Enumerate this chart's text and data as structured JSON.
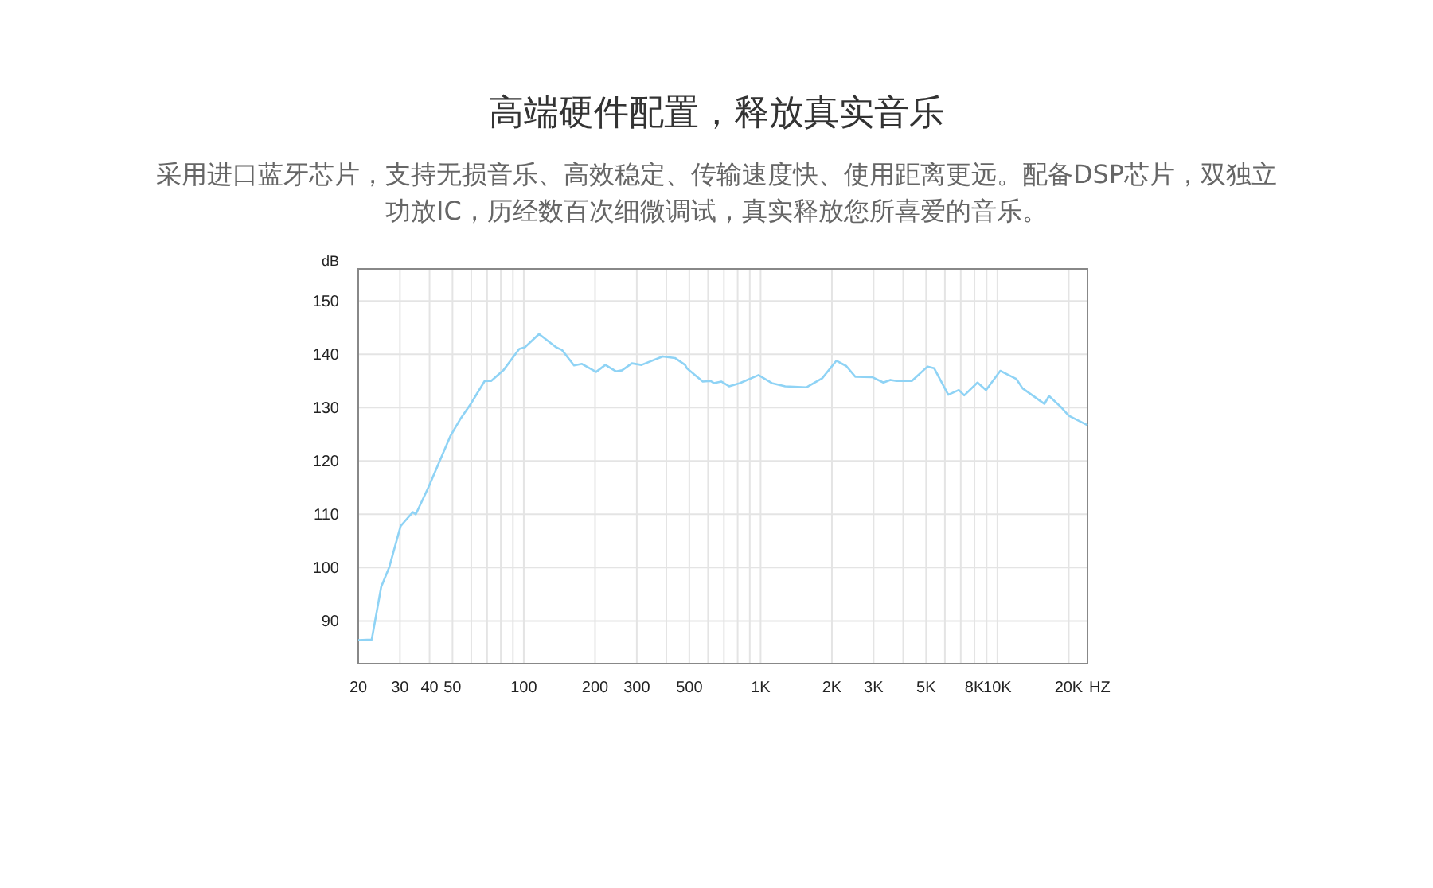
{
  "chart_data": {
    "type": "line",
    "title": "高端硬件配置，释放真实音乐",
    "subtitle": "采用进口蓝牙芯片，支持无损音乐、高效稳定、传输速度快、使用距离更远。配备DSP芯片，双独立功放IC，历经数百次细微调试，真实释放您所喜爱的音乐。",
    "xlabel": "HZ",
    "ylabel": "dB",
    "log": "x",
    "grid": true,
    "xlim": [
      20,
      24000
    ],
    "ylim": [
      82,
      156
    ],
    "xticks": [
      20,
      30,
      40,
      50,
      {
        "value": 60,
        "label": null
      },
      {
        "value": 70,
        "label": null
      },
      {
        "value": 80,
        "label": null
      },
      {
        "value": 90,
        "label": null
      },
      100,
      200,
      300,
      {
        "value": 400,
        "label": null
      },
      500,
      {
        "value": 600,
        "label": null
      },
      {
        "value": 700,
        "label": null
      },
      {
        "value": 800,
        "label": null
      },
      {
        "value": 900,
        "label": null
      },
      {
        "value": 1000,
        "label": "1K"
      },
      {
        "value": 2000,
        "label": "2K"
      },
      {
        "value": 3000,
        "label": "3K"
      },
      {
        "value": 4000,
        "label": null
      },
      {
        "value": 5000,
        "label": "5K"
      },
      {
        "value": 6000,
        "label": null
      },
      {
        "value": 7000,
        "label": null
      },
      {
        "value": 8000,
        "label": "8K"
      },
      {
        "value": 9000,
        "label": null
      },
      {
        "value": 10000,
        "label": "10K"
      },
      {
        "value": 20000,
        "label": "20K"
      }
    ],
    "yticks": [
      90,
      100,
      110,
      120,
      130,
      140,
      150
    ],
    "series": [
      {
        "color": "#8fd3f5",
        "x": [
          20,
          22.8,
          25,
          27,
          30.2,
          34,
          35,
          39.7,
          48.9,
          54.2,
          59.5,
          68.4,
          72.8,
          82,
          95.7,
          101,
          116,
          137,
          145,
          163,
          176,
          202,
          221,
          245,
          260,
          286,
          314,
          386,
          435,
          480,
          488,
          570,
          615,
          635,
          682,
          736,
          817,
          980,
          1115,
          1270,
          1560,
          1820,
          2090,
          2300,
          2510,
          2970,
          3300,
          3530,
          3750,
          4350,
          5070,
          5400,
          6200,
          6870,
          7240,
          8240,
          8950,
          10280,
          12000,
          12780,
          15800,
          16500,
          18650,
          20000,
          24000
        ],
        "values": [
          86.4,
          86.5,
          96.4,
          100,
          107.8,
          110.4,
          110,
          115.2,
          124.6,
          128,
          130.6,
          135,
          135,
          137,
          141,
          141.3,
          143.8,
          141.3,
          140.8,
          137.9,
          138.2,
          136.7,
          138,
          136.8,
          137,
          138.3,
          138,
          139.6,
          139.3,
          138,
          137.4,
          134.9,
          135,
          134.6,
          134.9,
          134,
          134.6,
          136.1,
          134.6,
          134,
          133.8,
          135.5,
          138.8,
          137.8,
          135.8,
          135.7,
          134.7,
          135.2,
          135,
          135,
          137.7,
          137.4,
          132.4,
          133.3,
          132.3,
          134.7,
          133.3,
          136.9,
          135.4,
          133.6,
          130.7,
          132.2,
          130,
          128.5,
          126.7
        ]
      }
    ]
  }
}
